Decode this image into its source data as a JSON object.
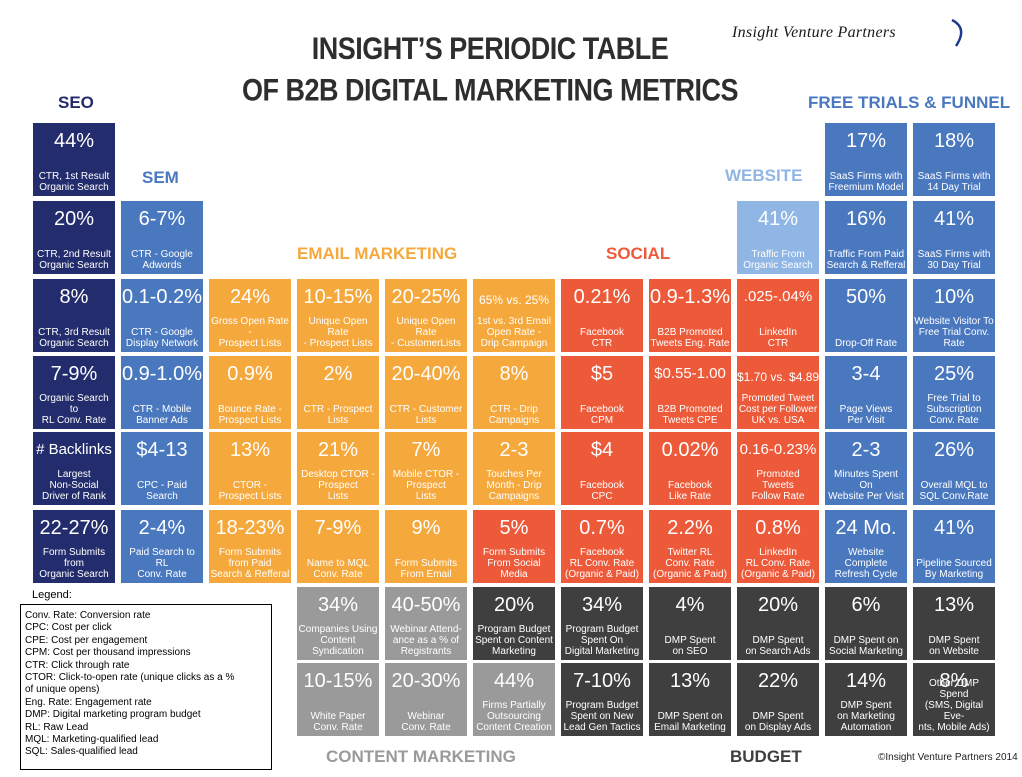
{
  "header": {
    "title_line1": "INSIGHT’S PERIODIC TABLE",
    "title_line2": "OF B2B DIGITAL MARKETING METRICS",
    "brand": "Insight Venture Partners"
  },
  "categories": {
    "seo": "SEO",
    "sem": "SEM",
    "email": "EMAIL MARKETING",
    "social": "SOCIAL",
    "website": "WEBSITE",
    "trials": "FREE TRIALS & FUNNEL",
    "content": "CONTENT MARKETING",
    "budget": "BUDGET"
  },
  "colors": {
    "seo": "#232c6c",
    "sem": "#4a78bf",
    "email": "#f5a83c",
    "social": "#ec5a3a",
    "website": "#8fb6e4",
    "trials": "#4a78bf",
    "content": "#9a9a9a",
    "budget": "#3f3f3f"
  },
  "cells": [
    {
      "v": "44%",
      "l": "CTR, 1st Result\nOrganic Search"
    },
    {
      "v": "20%",
      "l": "CTR, 2nd Result\nOrganic Search"
    },
    {
      "v": "8%",
      "l": "CTR, 3rd Result\nOrganic Search"
    },
    {
      "v": "7-9%",
      "l": "Organic Search to\nRL Conv. Rate"
    },
    {
      "v": "# Backlinks",
      "l": "Largest\nNon-Social\nDriver of Rank"
    },
    {
      "v": "22-27%",
      "l": "Form Submits from\nOrganic Search"
    },
    {
      "v": "6-7%",
      "l": "CTR - Google\nAdwords"
    },
    {
      "v": "0.1-0.2%",
      "l": "CTR - Google\nDisplay Network"
    },
    {
      "v": "0.9-1.0%",
      "l": "CTR - Mobile\nBanner Ads"
    },
    {
      "v": "$4-13",
      "l": "CPC - Paid Search"
    },
    {
      "v": "2-4%",
      "l": "Paid Search to RL\nConv. Rate"
    },
    {
      "v": "24%",
      "l": "Gross Open Rate -\nProspect Lists"
    },
    {
      "v": "0.9%",
      "l": "Bounce Rate -\nProspect Lists"
    },
    {
      "v": "13%",
      "l": "CTOR -\nProspect Lists"
    },
    {
      "v": "18-23%",
      "l": "Form Submits\nfrom Paid\nSearch & Refferal"
    },
    {
      "v": "10-15%",
      "l": "Unique Open Rate\n- Prospect Lists"
    },
    {
      "v": "2%",
      "l": "CTR - Prospect\nLists"
    },
    {
      "v": "21%",
      "l": "Desktop CTOR -\nProspect\nLists"
    },
    {
      "v": "7-9%",
      "l": "Name to MQL\nConv. Rate"
    },
    {
      "v": "20-25%",
      "l": "Unique Open Rate\n- CustomerLists"
    },
    {
      "v": "20-40%",
      "l": "CTR - Customer\nLists"
    },
    {
      "v": "7%",
      "l": "Mobile CTOR -\nProspect\nLists"
    },
    {
      "v": "9%",
      "l": "Form Submits\nFrom Email"
    },
    {
      "v": "65% vs. 25%",
      "l": "1st vs. 3rd Email\nOpen Rate -\nDrip Campaign"
    },
    {
      "v": "8%",
      "l": "CTR - Drip\nCampaigns"
    },
    {
      "v": "2-3",
      "l": "Touches Per\nMonth - Drip\nCampaigns"
    },
    {
      "v": "5%",
      "l": "Form Submits\nFrom Social Media"
    },
    {
      "v": "0.21%",
      "l": "Facebook\nCTR"
    },
    {
      "v": "$5",
      "l": "Facebook\nCPM"
    },
    {
      "v": "$4",
      "l": "Facebook\nCPC"
    },
    {
      "v": "0.7%",
      "l": "Facebook\nRL Conv. Rate\n(Organic & Paid)"
    },
    {
      "v": "0.9-1.3%",
      "l": "B2B Promoted\nTweets Eng. Rate"
    },
    {
      "v": "$0.55-1.00",
      "l": "B2B Promoted\nTweets CPE"
    },
    {
      "v": "0.02%",
      "l": "Facebook\nLike Rate"
    },
    {
      "v": "2.2%",
      "l": "Twitter RL\nConv. Rate\n(Organic & Paid)"
    },
    {
      "v": "41%",
      "l": "Traffic From\nOrganic Search"
    },
    {
      "v": ".025-.04%",
      "l": "LinkedIn\nCTR"
    },
    {
      "v": "$1.70 vs. $4.89",
      "l": "Promoted Tweet\nCost per Follower\nUK vs. USA"
    },
    {
      "v": "0.16-0.23%",
      "l": "Promoted\nTweets\nFollow Rate"
    },
    {
      "v": "0.8%",
      "l": "LinkedIn\nRL Conv. Rate\n(Organic & Paid)"
    },
    {
      "v": "17%",
      "l": "SaaS Firms with\nFreemium Model"
    },
    {
      "v": "16%",
      "l": "Traffic From Paid\nSearch & Refferal"
    },
    {
      "v": "50%",
      "l": "Drop-Off Rate"
    },
    {
      "v": "3-4",
      "l": "Page Views\nPer Visit"
    },
    {
      "v": "2-3",
      "l": "Minutes Spent On\nWebsite Per Visit"
    },
    {
      "v": "24 Mo.",
      "l": "Website\nComplete\nRefresh Cycle"
    },
    {
      "v": "18%",
      "l": "SaaS Firms with\n14 Day Trial"
    },
    {
      "v": "41%",
      "l": "SaaS Firms with\n30 Day Trial"
    },
    {
      "v": "10%",
      "l": "Website Visitor To\nFree Trial Conv. Rate"
    },
    {
      "v": "25%",
      "l": "Free Trial to\nSubscription\nConv. Rate"
    },
    {
      "v": "26%",
      "l": "Overall MQL  to\nSQL Conv.Rate"
    },
    {
      "v": "41%",
      "l": "Pipeline Sourced\nBy Marketing"
    },
    {
      "v": "34%",
      "l": "Companies Using\nContent\nSyndication"
    },
    {
      "v": "10-15%",
      "l": "White Paper\nConv. Rate"
    },
    {
      "v": "40-50%",
      "l": "Webinar Attend-\nance as a % of\nRegistrants"
    },
    {
      "v": "20-30%",
      "l": "Webinar\nConv. Rate"
    },
    {
      "v": "20%",
      "l": "Program Budget\nSpent on Content\nMarketing"
    },
    {
      "v": "44%",
      "l": "Firms Partially\nOutsourcing\nContent Creation"
    },
    {
      "v": "34%",
      "l": "Program Budget\nSpent On\nDigital Marketing"
    },
    {
      "v": "7-10%",
      "l": "Program Budget\nSpent on  New\nLead Gen Tactics"
    },
    {
      "v": "4%",
      "l": "DMP Spent\non SEO"
    },
    {
      "v": "13%",
      "l": "DMP Spent on\nEmail Marketing"
    },
    {
      "v": "20%",
      "l": "DMP Spent\non Search Ads"
    },
    {
      "v": "22%",
      "l": "DMP Spent\non Display Ads"
    },
    {
      "v": "6%",
      "l": "DMP Spent on\nSocial Marketing"
    },
    {
      "v": "14%",
      "l": "DMP Spent\non Marketing\nAutomation"
    },
    {
      "v": "13%",
      "l": "DMP Spent\non Website"
    },
    {
      "v": "8%",
      "l": "Other DMP Spend\n(SMS, Digital Eve-\nnts, Mobile Ads)"
    }
  ],
  "legend": {
    "title": "Legend:",
    "items": [
      "Conv. Rate: Conversion rate",
      "CPC: Cost per click",
      "CPE: Cost per engagement",
      "CPM: Cost per thousand impressions",
      "CTR: Click through rate",
      "CTOR: Click-to-open rate (unique clicks as a %\nof unique opens)",
      "Eng. Rate: Engagement rate",
      "DMP: Digital marketing program budget",
      "RL: Raw Lead",
      "MQL: Marketing-qualified lead",
      "SQL: Sales-qualified lead"
    ]
  },
  "copyright": "©Insight Venture Partners 2014"
}
